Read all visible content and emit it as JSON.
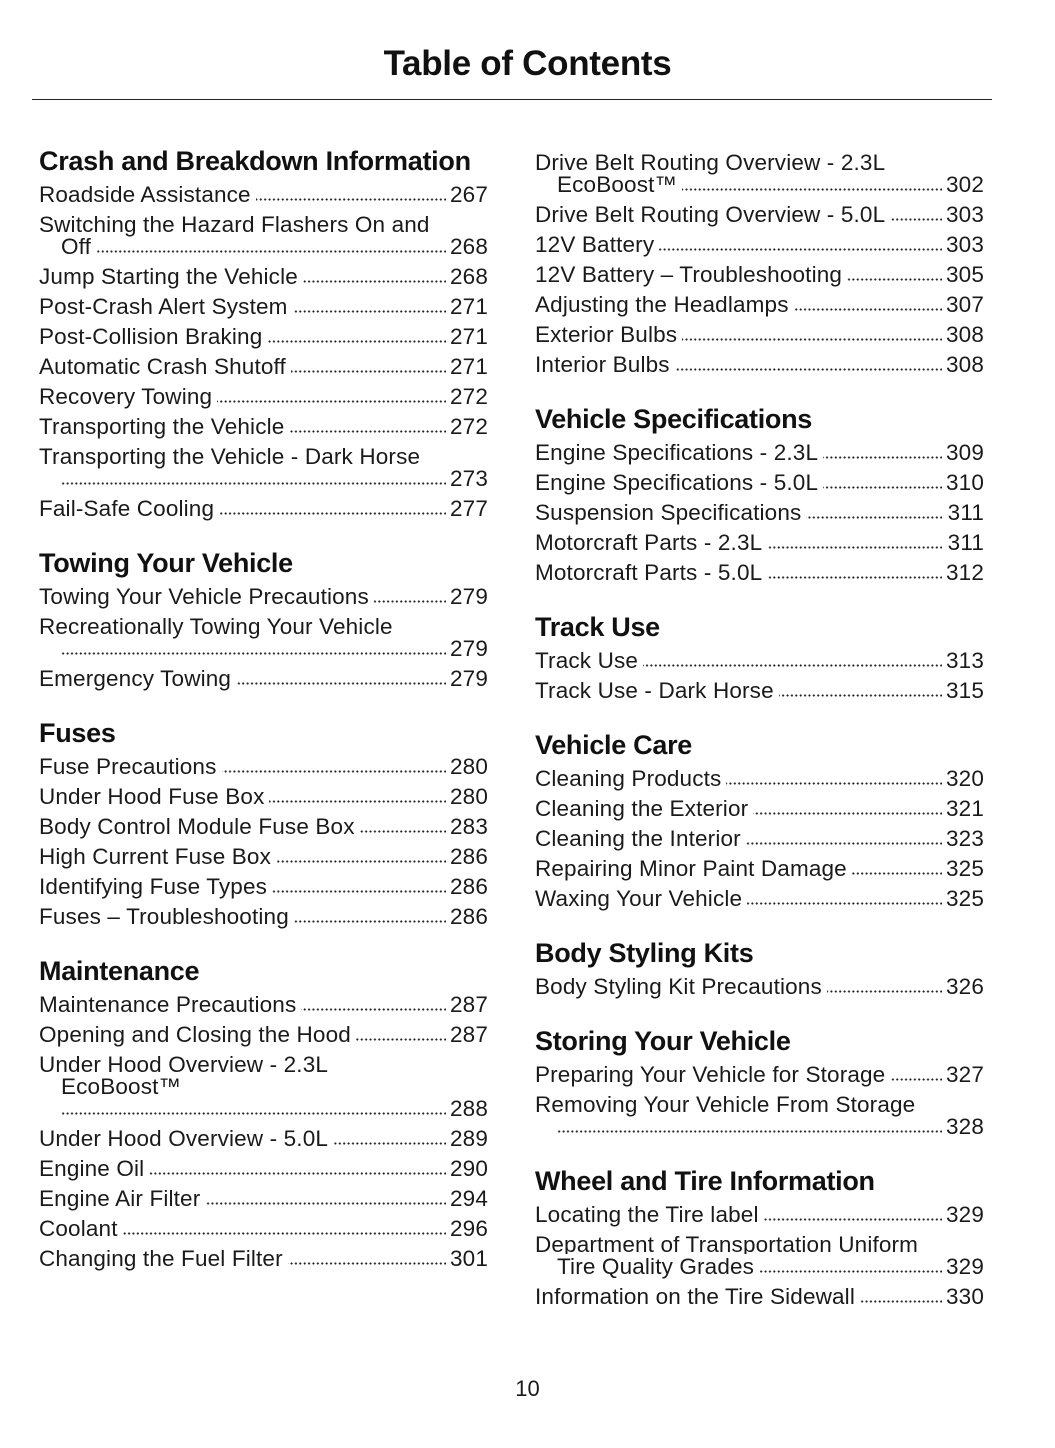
{
  "title": "Table of Contents",
  "page_number": "10",
  "columns": {
    "left": [
      {
        "heading": "Crash and Breakdown Information",
        "entries": [
          {
            "title": "Roadside Assistance",
            "page": "267"
          },
          {
            "title": "Switching the Hazard Flashers On and Off",
            "page": "268"
          },
          {
            "title": "Jump Starting the Vehicle",
            "page": "268"
          },
          {
            "title": "Post-Crash Alert System",
            "page": "271"
          },
          {
            "title": "Post-Collision Braking",
            "page": "271"
          },
          {
            "title": "Automatic Crash Shutoff",
            "page": "271"
          },
          {
            "title": "Recovery Towing",
            "page": "272"
          },
          {
            "title": "Transporting the Vehicle",
            "page": "272"
          },
          {
            "title": "Transporting the Vehicle - Dark Horse",
            "page": "273"
          },
          {
            "title": "Fail-Safe Cooling",
            "page": "277"
          }
        ]
      },
      {
        "heading": "Towing Your Vehicle",
        "entries": [
          {
            "title": "Towing Your Vehicle Precautions",
            "page": "279"
          },
          {
            "title": "Recreationally Towing Your Vehicle",
            "page": "279"
          },
          {
            "title": "Emergency Towing",
            "page": "279"
          }
        ]
      },
      {
        "heading": "Fuses",
        "entries": [
          {
            "title": "Fuse Precautions",
            "page": "280"
          },
          {
            "title": "Under Hood Fuse Box",
            "page": "280"
          },
          {
            "title": "Body Control Module Fuse Box",
            "page": "283"
          },
          {
            "title": "High Current Fuse Box",
            "page": "286"
          },
          {
            "title": "Identifying Fuse Types",
            "page": "286"
          },
          {
            "title": "Fuses – Troubleshooting",
            "page": "286"
          }
        ]
      },
      {
        "heading": "Maintenance",
        "entries": [
          {
            "title": "Maintenance Precautions",
            "page": "287"
          },
          {
            "title": "Opening and Closing the Hood",
            "page": "287"
          },
          {
            "title": "Under Hood Overview - 2.3L EcoBoost™",
            "page": "288"
          },
          {
            "title": "Under Hood Overview - 5.0L",
            "page": "289"
          },
          {
            "title": "Engine Oil",
            "page": "290"
          },
          {
            "title": "Engine Air Filter",
            "page": "294"
          },
          {
            "title": "Coolant",
            "page": "296"
          },
          {
            "title": "Changing the Fuel Filter",
            "page": "301"
          }
        ]
      }
    ],
    "right": [
      {
        "heading": "",
        "entries": [
          {
            "title": "Drive Belt Routing Overview - 2.3L EcoBoost™",
            "page": "302"
          },
          {
            "title": "Drive Belt Routing Overview - 5.0L",
            "page": "303"
          },
          {
            "title": "12V Battery",
            "page": "303"
          },
          {
            "title": "12V Battery – Troubleshooting",
            "page": "305"
          },
          {
            "title": "Adjusting the Headlamps",
            "page": "307"
          },
          {
            "title": "Exterior Bulbs",
            "page": "308"
          },
          {
            "title": "Interior Bulbs",
            "page": "308"
          }
        ]
      },
      {
        "heading": "Vehicle Specifications",
        "entries": [
          {
            "title": "Engine Specifications - 2.3L",
            "page": "309"
          },
          {
            "title": "Engine Specifications - 5.0L",
            "page": "310"
          },
          {
            "title": "Suspension Specifications",
            "page": "311"
          },
          {
            "title": "Motorcraft Parts - 2.3L",
            "page": "311"
          },
          {
            "title": "Motorcraft Parts - 5.0L",
            "page": "312"
          }
        ]
      },
      {
        "heading": "Track Use",
        "entries": [
          {
            "title": "Track Use",
            "page": "313"
          },
          {
            "title": "Track Use - Dark Horse",
            "page": "315"
          }
        ]
      },
      {
        "heading": "Vehicle Care",
        "entries": [
          {
            "title": "Cleaning Products",
            "page": "320"
          },
          {
            "title": "Cleaning the Exterior",
            "page": "321"
          },
          {
            "title": "Cleaning the Interior",
            "page": "323"
          },
          {
            "title": "Repairing Minor Paint Damage",
            "page": "325"
          },
          {
            "title": "Waxing Your Vehicle",
            "page": "325"
          }
        ]
      },
      {
        "heading": "Body Styling Kits",
        "entries": [
          {
            "title": "Body Styling Kit Precautions",
            "page": "326"
          }
        ]
      },
      {
        "heading": "Storing Your Vehicle",
        "entries": [
          {
            "title": "Preparing Your Vehicle for Storage",
            "page": "327"
          },
          {
            "title": "Removing Your Vehicle From Storage",
            "page": "328"
          }
        ]
      },
      {
        "heading": "Wheel and Tire Information",
        "entries": [
          {
            "title": "Locating the Tire label",
            "page": "329"
          },
          {
            "title": "Department of Transportation Uniform Tire Quality Grades",
            "page": "329"
          },
          {
            "title": "Information on the Tire Sidewall",
            "page": "330"
          }
        ]
      }
    ]
  }
}
